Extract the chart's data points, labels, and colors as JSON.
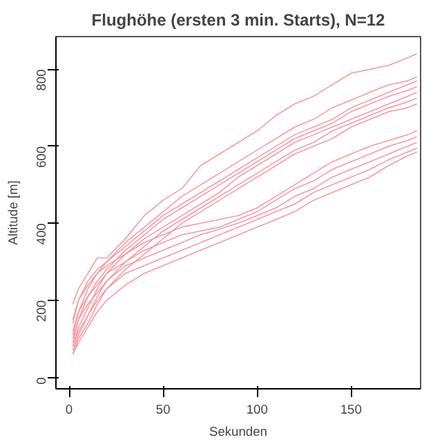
{
  "chart_data": {
    "type": "line",
    "title": "Flughöhe (ersten 3 min. Starts), N=12",
    "xlabel": "Sekunden",
    "ylabel": "Altitude [m]",
    "xlim": [
      -7,
      187
    ],
    "ylim": [
      -30,
      885
    ],
    "xticks": [
      0,
      50,
      100,
      150
    ],
    "yticks": [
      0,
      200,
      400,
      600,
      800
    ],
    "grid": false,
    "x": [
      2,
      5,
      10,
      15,
      20,
      30,
      40,
      50,
      60,
      70,
      80,
      90,
      100,
      110,
      120,
      130,
      140,
      150,
      160,
      170,
      180,
      185
    ],
    "series": [
      {
        "color": "#f59aa5",
        "values": [
          190,
          230,
          270,
          310,
          310,
          360,
          420,
          460,
          490,
          550,
          580,
          610,
          640,
          680,
          710,
          730,
          760,
          790,
          800,
          810,
          830,
          840
        ]
      },
      {
        "color": "#f59aa5",
        "values": [
          140,
          200,
          250,
          280,
          300,
          350,
          390,
          430,
          470,
          500,
          530,
          560,
          590,
          620,
          650,
          670,
          700,
          720,
          740,
          760,
          770,
          780
        ]
      },
      {
        "color": "#f59aa5",
        "values": [
          110,
          170,
          230,
          270,
          300,
          340,
          380,
          420,
          450,
          480,
          510,
          540,
          570,
          600,
          630,
          650,
          670,
          700,
          720,
          740,
          760,
          770
        ]
      },
      {
        "color": "#f59aa5",
        "values": [
          90,
          150,
          210,
          250,
          280,
          330,
          370,
          410,
          440,
          470,
          500,
          530,
          560,
          590,
          620,
          640,
          660,
          690,
          710,
          730,
          745,
          755
        ]
      },
      {
        "color": "#f59aa5",
        "values": [
          80,
          130,
          180,
          230,
          270,
          320,
          360,
          390,
          420,
          450,
          480,
          520,
          550,
          580,
          610,
          630,
          650,
          670,
          690,
          710,
          730,
          740
        ]
      },
      {
        "color": "#f59aa5",
        "values": [
          70,
          110,
          160,
          210,
          250,
          300,
          340,
          380,
          410,
          440,
          470,
          500,
          530,
          560,
          590,
          610,
          640,
          660,
          680,
          700,
          715,
          725
        ]
      },
      {
        "color": "#f59aa5",
        "values": [
          60,
          100,
          140,
          190,
          230,
          280,
          320,
          360,
          400,
          430,
          460,
          490,
          520,
          550,
          580,
          600,
          620,
          650,
          670,
          690,
          700,
          710
        ]
      },
      {
        "color": "#f59aa5",
        "values": [
          150,
          200,
          240,
          270,
          290,
          320,
          350,
          370,
          390,
          400,
          410,
          420,
          440,
          470,
          500,
          530,
          560,
          580,
          600,
          615,
          630,
          640
        ]
      },
      {
        "color": "#f59aa5",
        "values": [
          120,
          170,
          210,
          240,
          270,
          300,
          330,
          350,
          370,
          380,
          390,
          410,
          430,
          460,
          490,
          510,
          540,
          560,
          580,
          600,
          615,
          625
        ]
      },
      {
        "color": "#f59aa5",
        "values": [
          100,
          150,
          190,
          220,
          250,
          290,
          310,
          330,
          350,
          370,
          385,
          400,
          420,
          440,
          470,
          490,
          520,
          540,
          560,
          580,
          600,
          610
        ]
      },
      {
        "color": "#f59aa5",
        "values": [
          80,
          120,
          160,
          200,
          230,
          270,
          290,
          310,
          330,
          350,
          370,
          390,
          410,
          430,
          450,
          480,
          500,
          520,
          540,
          565,
          585,
          595
        ]
      },
      {
        "color": "#f59aa5",
        "values": [
          60,
          90,
          130,
          170,
          200,
          240,
          270,
          290,
          310,
          330,
          350,
          370,
          390,
          410,
          430,
          460,
          480,
          500,
          520,
          550,
          575,
          585
        ]
      }
    ]
  }
}
